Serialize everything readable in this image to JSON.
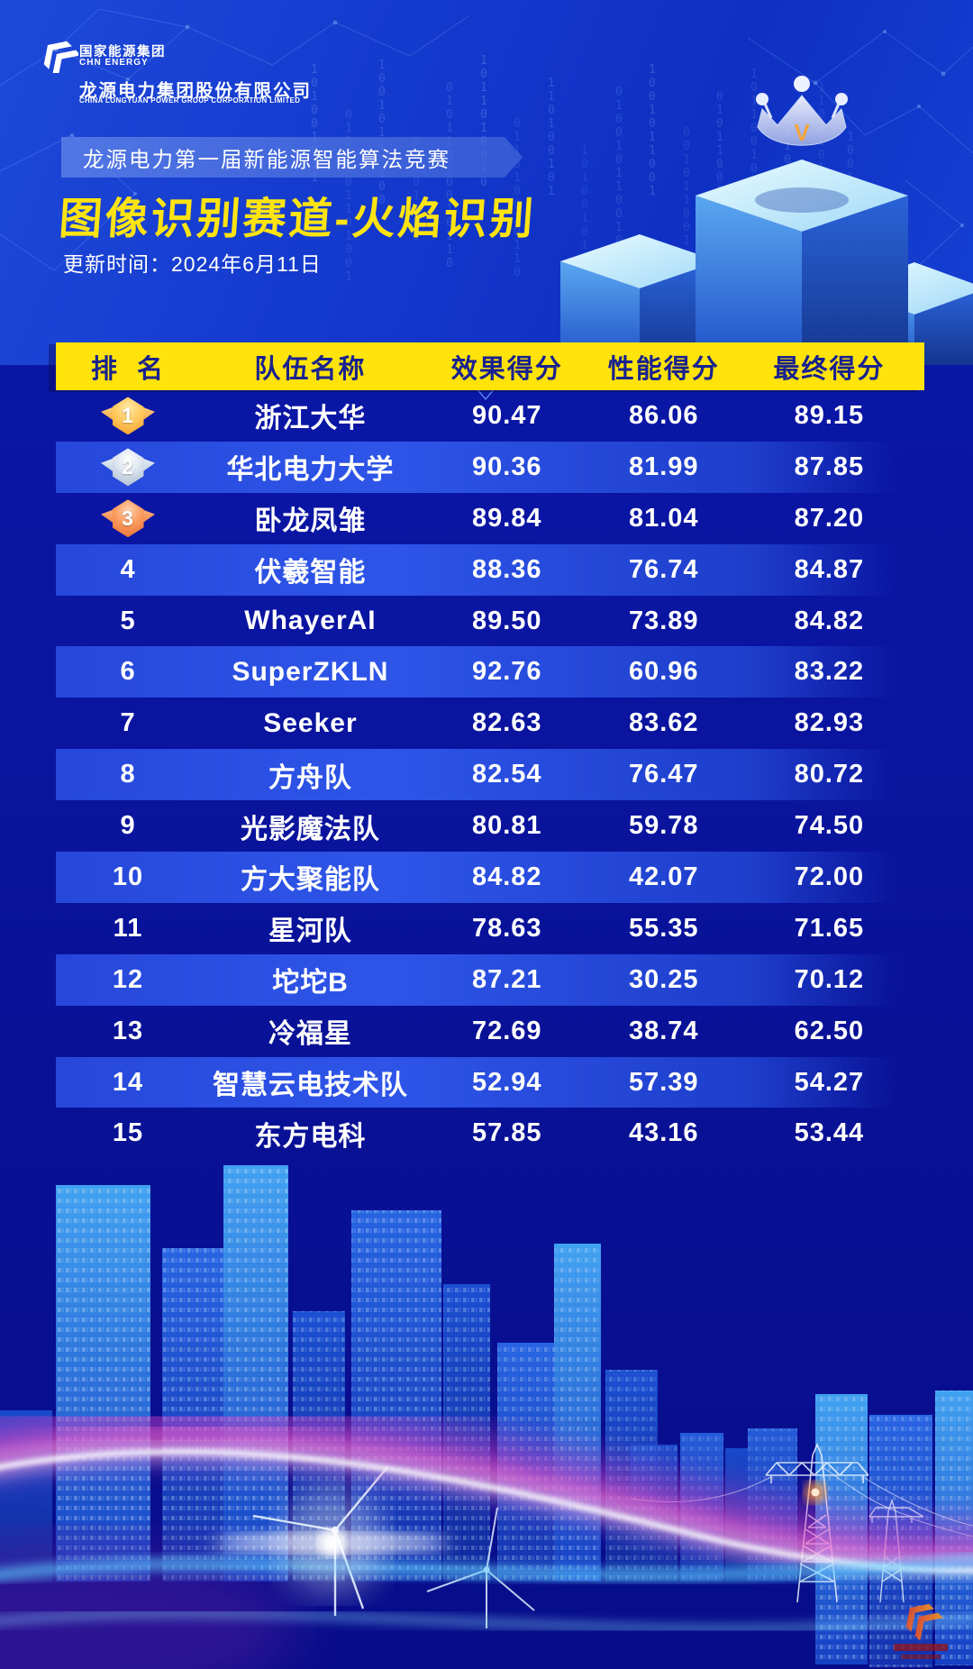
{
  "brand": {
    "group_cn": "国家能源集团",
    "group_en": "CHN ENERGY",
    "company_cn": "龙源电力集团股份有限公司",
    "company_en": "CHINA LONGYUAN POWER GROUP CORPORATION LIMITED"
  },
  "header": {
    "competition": "龙源电力第一届新能源智能算法竞赛",
    "title": "图像识别赛道-火焰识别",
    "update_time": "更新时间：2024年6月11日",
    "crown_letter": "V"
  },
  "table": {
    "columns": [
      "排  名",
      "队伍名称",
      "效果得分",
      "性能得分",
      "最终得分"
    ],
    "rows": [
      {
        "rank": "1",
        "medal": "gold",
        "team": "浙江大华",
        "effect": "90.47",
        "performance": "86.06",
        "final": "89.15"
      },
      {
        "rank": "2",
        "medal": "silver",
        "team": "华北电力大学",
        "effect": "90.36",
        "performance": "81.99",
        "final": "87.85"
      },
      {
        "rank": "3",
        "medal": "bronze",
        "team": "卧龙凤雏",
        "effect": "89.84",
        "performance": "81.04",
        "final": "87.20"
      },
      {
        "rank": "4",
        "medal": "",
        "team": "伏羲智能",
        "effect": "88.36",
        "performance": "76.74",
        "final": "84.87"
      },
      {
        "rank": "5",
        "medal": "",
        "team": "WhayerAI",
        "effect": "89.50",
        "performance": "73.89",
        "final": "84.82"
      },
      {
        "rank": "6",
        "medal": "",
        "team": "SuperZKLN",
        "effect": "92.76",
        "performance": "60.96",
        "final": "83.22"
      },
      {
        "rank": "7",
        "medal": "",
        "team": "Seeker",
        "effect": "82.63",
        "performance": "83.62",
        "final": "82.93"
      },
      {
        "rank": "8",
        "medal": "",
        "team": "方舟队",
        "effect": "82.54",
        "performance": "76.47",
        "final": "80.72"
      },
      {
        "rank": "9",
        "medal": "",
        "team": "光影魔法队",
        "effect": "80.81",
        "performance": "59.78",
        "final": "74.50"
      },
      {
        "rank": "10",
        "medal": "",
        "team": "方大聚能队",
        "effect": "84.82",
        "performance": "42.07",
        "final": "72.00"
      },
      {
        "rank": "11",
        "medal": "",
        "team": "星河队",
        "effect": "78.63",
        "performance": "55.35",
        "final": "71.65"
      },
      {
        "rank": "12",
        "medal": "",
        "team": "坨坨B",
        "effect": "87.21",
        "performance": "30.25",
        "final": "70.12"
      },
      {
        "rank": "13",
        "medal": "",
        "team": "冷福星",
        "effect": "72.69",
        "performance": "38.74",
        "final": "62.50"
      },
      {
        "rank": "14",
        "medal": "",
        "team": "智慧云电技术队",
        "effect": "52.94",
        "performance": "57.39",
        "final": "54.27"
      },
      {
        "rank": "15",
        "medal": "",
        "team": "东方电科",
        "effect": "57.85",
        "performance": "43.16",
        "final": "53.44"
      }
    ]
  },
  "colors": {
    "accent_yellow": "#ffe30a",
    "header_text_blue": "#19228f",
    "hero_blue": "#1439cd",
    "deep_blue": "#0a15a2",
    "row_highlight": "#2e55e8",
    "medal_gold": "#f09a26",
    "medal_silver": "#a4b6ca",
    "medal_bronze": "#e56a2e",
    "crown_v_orange": "#f5a43c",
    "streak_pink": "#ff66cc",
    "streak_cyan": "#5fd0ff"
  },
  "decor": {
    "binary": "1010010110100101100101101001011010010110100101011010"
  }
}
